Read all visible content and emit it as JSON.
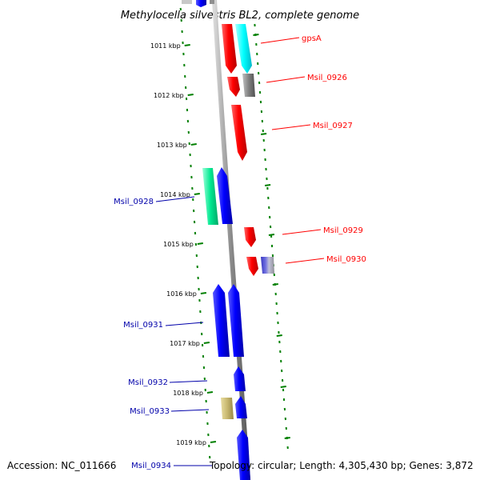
{
  "title": "Methylocella silvestris BL2, complete genome",
  "footer": {
    "accession": "Accession: NC_011666",
    "topology": "Topology: circular; Length: 4,305,430 bp; Genes: 3,872"
  },
  "ticks": [
    "1011 kbp",
    "1012 kbp",
    "1013 kbp",
    "1014 kbp",
    "1015 kbp",
    "1016 kbp",
    "1017 kbp",
    "1018 kbp",
    "1019 kbp"
  ],
  "genes": [
    {
      "name": "gpsA",
      "strand": "right",
      "color": "#ff0000"
    },
    {
      "name": "Msil_0926",
      "strand": "right",
      "color": "#ff0000"
    },
    {
      "name": "Msil_0927",
      "strand": "right",
      "color": "#ff0000"
    },
    {
      "name": "Msil_0928",
      "strand": "left",
      "color": "#0000ff"
    },
    {
      "name": "Msil_0929",
      "strand": "right",
      "color": "#ff0000"
    },
    {
      "name": "Msil_0930",
      "strand": "right",
      "color": "#ff0000"
    },
    {
      "name": "Msil_0931",
      "strand": "left",
      "color": "#0000ff"
    },
    {
      "name": "Msil_0932",
      "strand": "left",
      "color": "#0000ff"
    },
    {
      "name": "Msil_0933",
      "strand": "left",
      "color": "#0000ff"
    },
    {
      "name": "Msil_0934",
      "strand": "left",
      "color": "#0000ff"
    }
  ]
}
